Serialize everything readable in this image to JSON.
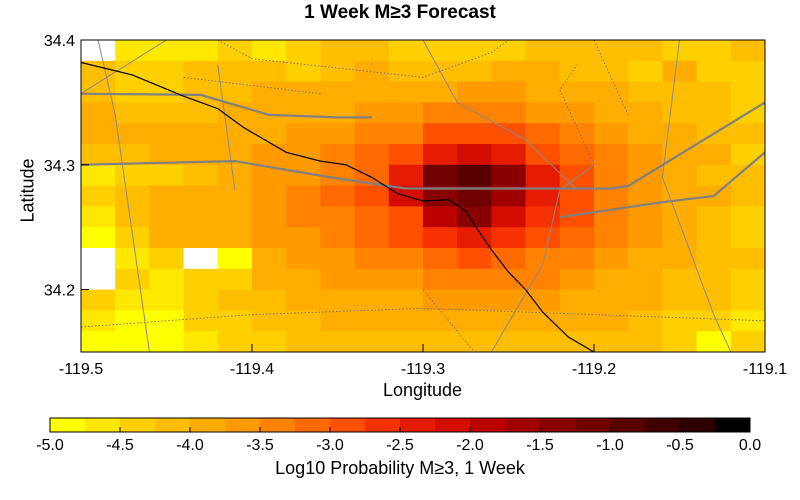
{
  "chart_data": {
    "type": "heatmap",
    "title": "1 Week M≥3 Forecast",
    "xlabel": "Longitude",
    "ylabel": "Latitude",
    "xlim": [
      -119.5,
      -119.1
    ],
    "ylim": [
      34.15,
      34.4
    ],
    "x_ticks": [
      "-119.5",
      "-119.4",
      "-119.3",
      "-119.2",
      "-119.1"
    ],
    "y_ticks": [
      "34.2",
      "34.3",
      "34.4"
    ],
    "colorbar": {
      "label": "Log10 Probability M≥3, 1 Week",
      "range": [
        -5.0,
        0.0
      ],
      "ticks": [
        "-5.0",
        "-4.5",
        "-4.0",
        "-3.5",
        "-3.0",
        "-2.5",
        "-2.0",
        "-1.5",
        "-1.0",
        "-0.5",
        "0.0"
      ],
      "colors": [
        "#ffff00",
        "#ffe800",
        "#ffd000",
        "#ffbf00",
        "#ffad00",
        "#ff9a00",
        "#ff8200",
        "#ff6a00",
        "#ff5000",
        "#f53200",
        "#e61c00",
        "#d30d00",
        "#bb0000",
        "#a00000",
        "#880000",
        "#700000",
        "#580000",
        "#400000",
        "#2b0000",
        "#000000"
      ]
    },
    "grid_resolution_deg": 0.02,
    "cells_rows_from_north": [
      [
        null,
        -4.6,
        -4.7,
        -4.6,
        -4.5,
        -4.7,
        -4.3,
        -4.2,
        -4.2,
        -4.4,
        -4.3,
        -4.3,
        -4.3,
        -4.2,
        -4.1,
        -4.1,
        -4.2,
        -4.3,
        -4.4,
        -4.2
      ],
      [
        -4.2,
        -4.5,
        -4.4,
        -4.2,
        -4.1,
        -4.2,
        -4.3,
        -4.1,
        -4.0,
        -4.1,
        -4.1,
        -4.1,
        -4.0,
        -4.0,
        -4.1,
        -4.2,
        -4.3,
        -4.0,
        -4.3,
        -4.4
      ],
      [
        -4.1,
        -4.3,
        -4.3,
        -4.2,
        -4.1,
        -4.0,
        -4.0,
        -3.9,
        -3.9,
        -3.9,
        -3.8,
        -3.7,
        -3.7,
        -3.8,
        -3.9,
        -4.0,
        -4.1,
        -4.2,
        -4.2,
        -4.3
      ],
      [
        -4.0,
        -4.2,
        -4.1,
        -4.1,
        -4.0,
        -4.0,
        -3.9,
        -3.8,
        -3.7,
        -3.6,
        -3.5,
        -3.5,
        -3.5,
        -3.6,
        -3.7,
        -3.9,
        -4.0,
        -4.1,
        -4.2,
        -4.3
      ],
      [
        -3.9,
        -4.0,
        -4.0,
        -4.0,
        -3.9,
        -3.8,
        -3.7,
        -3.6,
        -3.4,
        -3.3,
        -3.0,
        -2.9,
        -3.0,
        -3.1,
        -3.3,
        -3.6,
        -3.8,
        -4.0,
        -4.1,
        -4.2
      ],
      [
        -4.2,
        -4.1,
        -4.0,
        -3.9,
        -3.8,
        -3.7,
        -3.6,
        -3.4,
        -3.2,
        -2.9,
        -2.3,
        -2.1,
        -2.3,
        -2.8,
        -3.1,
        -3.5,
        -3.7,
        -3.9,
        -4.0,
        -4.4
      ],
      [
        -4.6,
        -4.5,
        -4.4,
        -4.1,
        -3.9,
        -3.7,
        -3.6,
        -3.3,
        -3.1,
        -2.5,
        -1.1,
        -0.9,
        -1.3,
        -2.4,
        -3.0,
        -3.4,
        -3.7,
        -3.9,
        -4.1,
        -4.2
      ],
      [
        -4.4,
        -4.2,
        -4.0,
        -4.0,
        -3.9,
        -3.7,
        -3.5,
        -3.2,
        -2.9,
        -2.2,
        -1.4,
        -1.2,
        -1.6,
        -2.4,
        -2.9,
        -3.3,
        -3.6,
        -3.8,
        -4.0,
        -4.2
      ],
      [
        -4.6,
        -4.2,
        -4.0,
        -3.9,
        -3.8,
        -3.6,
        -3.5,
        -3.3,
        -3.1,
        -2.9,
        -1.8,
        -1.5,
        -2.1,
        -2.7,
        -3.0,
        -3.4,
        -3.6,
        -3.9,
        -4.1,
        -4.3
      ],
      [
        -4.8,
        -4.3,
        -4.0,
        -3.9,
        -3.8,
        -3.7,
        -3.6,
        -3.4,
        -3.2,
        -3.0,
        -2.6,
        -2.4,
        -2.7,
        -2.9,
        -3.2,
        -3.5,
        -3.7,
        -4.0,
        -4.2,
        -4.3
      ],
      [
        null,
        -4.6,
        -4.4,
        null,
        -4.8,
        -3.8,
        -3.7,
        -3.6,
        -3.4,
        -3.3,
        -3.1,
        -3.0,
        -3.1,
        -3.3,
        -3.4,
        -3.6,
        -3.8,
        -4.0,
        -4.1,
        -4.2
      ],
      [
        null,
        -4.4,
        -4.6,
        -4.5,
        -4.3,
        -4.0,
        -3.9,
        -3.7,
        -3.7,
        -3.6,
        -3.4,
        -3.3,
        -3.4,
        -3.5,
        -3.6,
        -3.8,
        -3.9,
        -4.1,
        -4.2,
        -4.3
      ],
      [
        -4.3,
        -4.7,
        -4.6,
        -4.4,
        -4.2,
        -4.1,
        -4.0,
        -3.9,
        -3.8,
        -3.8,
        -3.7,
        -3.6,
        -3.7,
        -3.7,
        -3.8,
        -3.9,
        -4.0,
        -4.1,
        -4.2,
        -4.3
      ],
      [
        -4.7,
        -4.8,
        -4.8,
        -4.5,
        -4.3,
        -4.2,
        -4.1,
        -4.0,
        -4.0,
        -3.9,
        -3.9,
        -3.9,
        -3.9,
        -3.9,
        -4.0,
        -4.0,
        -4.1,
        -4.4,
        -4.4,
        -4.6
      ],
      [
        -4.8,
        -4.9,
        -4.8,
        -4.6,
        -4.4,
        -4.3,
        -4.2,
        -4.2,
        -4.1,
        -4.1,
        -4.1,
        -4.1,
        -4.1,
        -4.1,
        -4.1,
        -4.1,
        -4.2,
        -4.4,
        -4.8,
        -4.5
      ]
    ],
    "coastline": [
      [
        -119.5,
        34.382
      ],
      [
        -119.47,
        34.372
      ],
      [
        -119.44,
        34.355
      ],
      [
        -119.42,
        34.345
      ],
      [
        -119.405,
        34.33
      ],
      [
        -119.38,
        34.31
      ],
      [
        -119.36,
        34.303
      ],
      [
        -119.345,
        34.3
      ],
      [
        -119.33,
        34.29
      ],
      [
        -119.315,
        34.277
      ],
      [
        -119.3,
        34.271
      ],
      [
        -119.285,
        34.272
      ],
      [
        -119.275,
        34.263
      ],
      [
        -119.268,
        34.248
      ],
      [
        -119.26,
        34.232
      ],
      [
        -119.25,
        34.214
      ],
      [
        -119.24,
        34.2
      ],
      [
        -119.23,
        34.182
      ],
      [
        -119.215,
        34.162
      ],
      [
        -119.2,
        34.15
      ]
    ],
    "highways": [
      [
        [
          -119.5,
          34.357
        ],
        [
          -119.43,
          34.356
        ],
        [
          -119.39,
          34.34
        ],
        [
          -119.35,
          34.338
        ],
        [
          -119.33,
          34.338
        ]
      ],
      [
        [
          -119.5,
          34.3
        ],
        [
          -119.44,
          34.302
        ],
        [
          -119.41,
          34.303
        ],
        [
          -119.35,
          34.289
        ],
        [
          -119.31,
          34.281
        ],
        [
          -119.25,
          34.281
        ],
        [
          -119.19,
          34.281
        ],
        [
          -119.18,
          34.283
        ],
        [
          -119.1,
          34.35
        ]
      ],
      [
        [
          -119.22,
          34.258
        ],
        [
          -119.16,
          34.27
        ],
        [
          -119.13,
          34.275
        ],
        [
          -119.1,
          34.31
        ]
      ]
    ],
    "faults_solid": [
      [
        [
          -119.49,
          34.4
        ],
        [
          -119.48,
          34.34
        ],
        [
          -119.46,
          34.15
        ]
      ],
      [
        [
          -119.41,
          34.28
        ],
        [
          -119.42,
          34.38
        ]
      ],
      [
        [
          -119.3,
          34.4
        ],
        [
          -119.28,
          34.35
        ],
        [
          -119.24,
          34.32
        ],
        [
          -119.21,
          34.28
        ]
      ],
      [
        [
          -119.33,
          34.382
        ],
        [
          -119.33,
          34.38
        ]
      ],
      [
        [
          -119.2,
          34.3
        ],
        [
          -119.22,
          34.28
        ],
        [
          -119.23,
          34.22
        ],
        [
          -119.26,
          34.15
        ]
      ],
      [
        [
          -119.45,
          34.4
        ],
        [
          -119.52,
          34.34
        ]
      ],
      [
        [
          -119.15,
          34.4
        ],
        [
          -119.16,
          34.29
        ],
        [
          -119.13,
          34.18
        ],
        [
          -119.12,
          34.15
        ]
      ]
    ],
    "faults_dotted": [
      [
        [
          -119.42,
          34.4
        ],
        [
          -119.4,
          34.385
        ],
        [
          -119.3,
          34.37
        ],
        [
          -119.26,
          34.39
        ],
        [
          -119.25,
          34.4
        ]
      ],
      [
        [
          -119.3,
          34.2
        ],
        [
          -119.27,
          34.15
        ]
      ],
      [
        [
          -119.44,
          34.37
        ],
        [
          -119.36,
          34.357
        ]
      ],
      [
        [
          -119.5,
          34.17
        ],
        [
          -119.4,
          34.18
        ],
        [
          -119.3,
          34.185
        ],
        [
          -119.2,
          34.18
        ],
        [
          -119.1,
          34.175
        ]
      ],
      [
        [
          -119.2,
          34.3
        ],
        [
          -119.22,
          34.36
        ],
        [
          -119.21,
          34.38
        ]
      ],
      [
        [
          -119.18,
          34.34
        ],
        [
          -119.2,
          34.4
        ]
      ]
    ]
  }
}
